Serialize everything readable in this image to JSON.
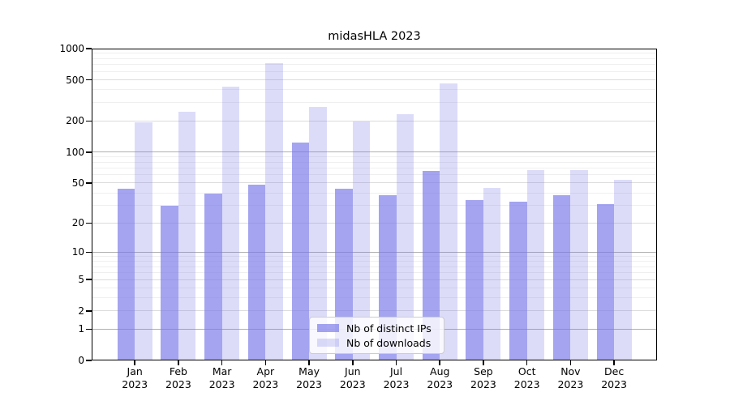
{
  "chart_data": {
    "type": "bar",
    "title": "midasHLA 2023",
    "categories": [
      "Jan 2023",
      "Feb 2023",
      "Mar 2023",
      "Apr 2023",
      "May 2023",
      "Jun 2023",
      "Jul 2023",
      "Aug 2023",
      "Sep 2023",
      "Oct 2023",
      "Nov 2023",
      "Dec 2023"
    ],
    "x_tick_labels": [
      [
        "Jan",
        "2023"
      ],
      [
        "Feb",
        "2023"
      ],
      [
        "Mar",
        "2023"
      ],
      [
        "Apr",
        "2023"
      ],
      [
        "May",
        "2023"
      ],
      [
        "Jun",
        "2023"
      ],
      [
        "Jul",
        "2023"
      ],
      [
        "Aug",
        "2023"
      ],
      [
        "Sep",
        "2023"
      ],
      [
        "Oct",
        "2023"
      ],
      [
        "Nov",
        "2023"
      ],
      [
        "Dec",
        "2023"
      ]
    ],
    "series": [
      {
        "name": "Nb of distinct IPs",
        "color": "rgba(120,120,232,0.67)",
        "values": [
          44,
          30,
          39,
          48,
          124,
          44,
          38,
          66,
          34,
          33,
          38,
          31
        ]
      },
      {
        "name": "Nb of downloads",
        "color": "rgba(120,120,232,0.26)",
        "values": [
          196,
          248,
          428,
          730,
          276,
          197,
          234,
          460,
          45,
          67,
          67,
          54
        ]
      }
    ],
    "ylim": [
      0,
      1000
    ],
    "yscale": "symlog-log1p",
    "y_tick_labels": [
      "0",
      "1",
      "2",
      "5",
      "10",
      "20",
      "50",
      "100",
      "200",
      "500",
      "1000"
    ],
    "y_ticks": [
      0,
      1,
      2,
      5,
      10,
      20,
      50,
      100,
      200,
      500,
      1000
    ],
    "y_gridlines_major": [
      1,
      10,
      100
    ],
    "y_gridlines_medium": [
      2,
      5,
      20,
      50,
      200,
      500
    ],
    "y_gridlines_minor": [
      3,
      4,
      6,
      7,
      8,
      9,
      30,
      40,
      60,
      70,
      80,
      90,
      300,
      400,
      600,
      700,
      800,
      900
    ],
    "grid": true,
    "legend_position": "lower center"
  },
  "colors": {
    "bar_distinct_ips": "rgba(120,120,232,0.67)",
    "bar_downloads": "rgba(120,120,232,0.26)",
    "grid_major": "#b0b0b0",
    "grid_medium": "#dcdcdc",
    "grid_minor": "#efefef",
    "axis": "#000000",
    "legend_border": "#cccccc",
    "background": "#ffffff"
  }
}
